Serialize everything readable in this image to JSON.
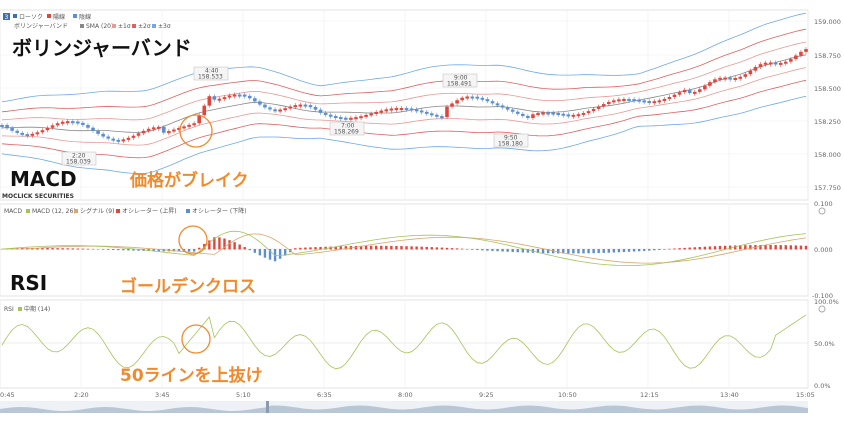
{
  "legend_top": {
    "badge": "3",
    "items": [
      {
        "label": "ローソク",
        "color": "#3b6fb5"
      },
      {
        "label": "陽線",
        "color": "#e0463e"
      },
      {
        "label": "陰線",
        "color": "#5b8fd0"
      }
    ],
    "indicator_name": "ボリンジャーバンド",
    "indicator_items": [
      {
        "label": "SMA (20)",
        "color": "#888888"
      },
      {
        "label": "±1σ",
        "color": "#e89a96"
      },
      {
        "label": "±2σ",
        "color": "#e06060"
      },
      {
        "label": "±3σ",
        "color": "#6fa9e6"
      }
    ]
  },
  "price_axis": [
    "159.000",
    "158.750",
    "158.500",
    "158.250",
    "158.000",
    "157.750"
  ],
  "callouts": [
    {
      "time": "2:20",
      "price": "158.039"
    },
    {
      "time": "4:40",
      "price": "158.533"
    },
    {
      "time": "7:00",
      "price": "158.269"
    },
    {
      "time": "9:00",
      "price": "158.491"
    },
    {
      "time": "9:50",
      "price": "158.180"
    }
  ],
  "titles": {
    "bollinger": "ボリンジャーバンド",
    "macd": "MACD",
    "rsi": "RSI"
  },
  "annotations": {
    "breakout": "価格がブレイク",
    "golden_cross": "ゴールデンクロス",
    "rsi_cross": "50ラインを上抜け"
  },
  "macd_panel": {
    "logo": "MOCLICK SECURITIES",
    "legend": [
      {
        "label": "MACD",
        "color": "#555555"
      },
      {
        "label": "MACD (12, 26)",
        "color": "#a4c45a"
      },
      {
        "label": "シグナル (9)",
        "color": "#d9a86a"
      },
      {
        "label": "オシレーター (上昇)",
        "color": "#e0463e"
      },
      {
        "label": "オシレーター (下降)",
        "color": "#5b8fd0"
      }
    ],
    "axis": [
      "0.100",
      "0.000",
      "-0.100"
    ]
  },
  "rsi_panel": {
    "legend": [
      {
        "label": "RSI",
        "color": "#555555"
      },
      {
        "label": "中期 (14)",
        "color": "#a4c45a"
      }
    ],
    "axis": [
      "100.0%",
      "50.0%",
      "0.0%"
    ]
  },
  "time_axis": [
    "0:45",
    "2:20",
    "3:45",
    "5:10",
    "6:35",
    "8:00",
    "9:25",
    "10:50",
    "12:15",
    "13:40",
    "15:05"
  ],
  "colors": {
    "up": "#e0463e",
    "down": "#5b8fd0",
    "sma": "#888888",
    "band1": "#e89a96",
    "band2": "#e06060",
    "band3": "#6fa9e6",
    "macd": "#a4c45a",
    "signal": "#d9a86a",
    "rsi": "#a4c45a",
    "accent": "#f08a2c"
  }
}
